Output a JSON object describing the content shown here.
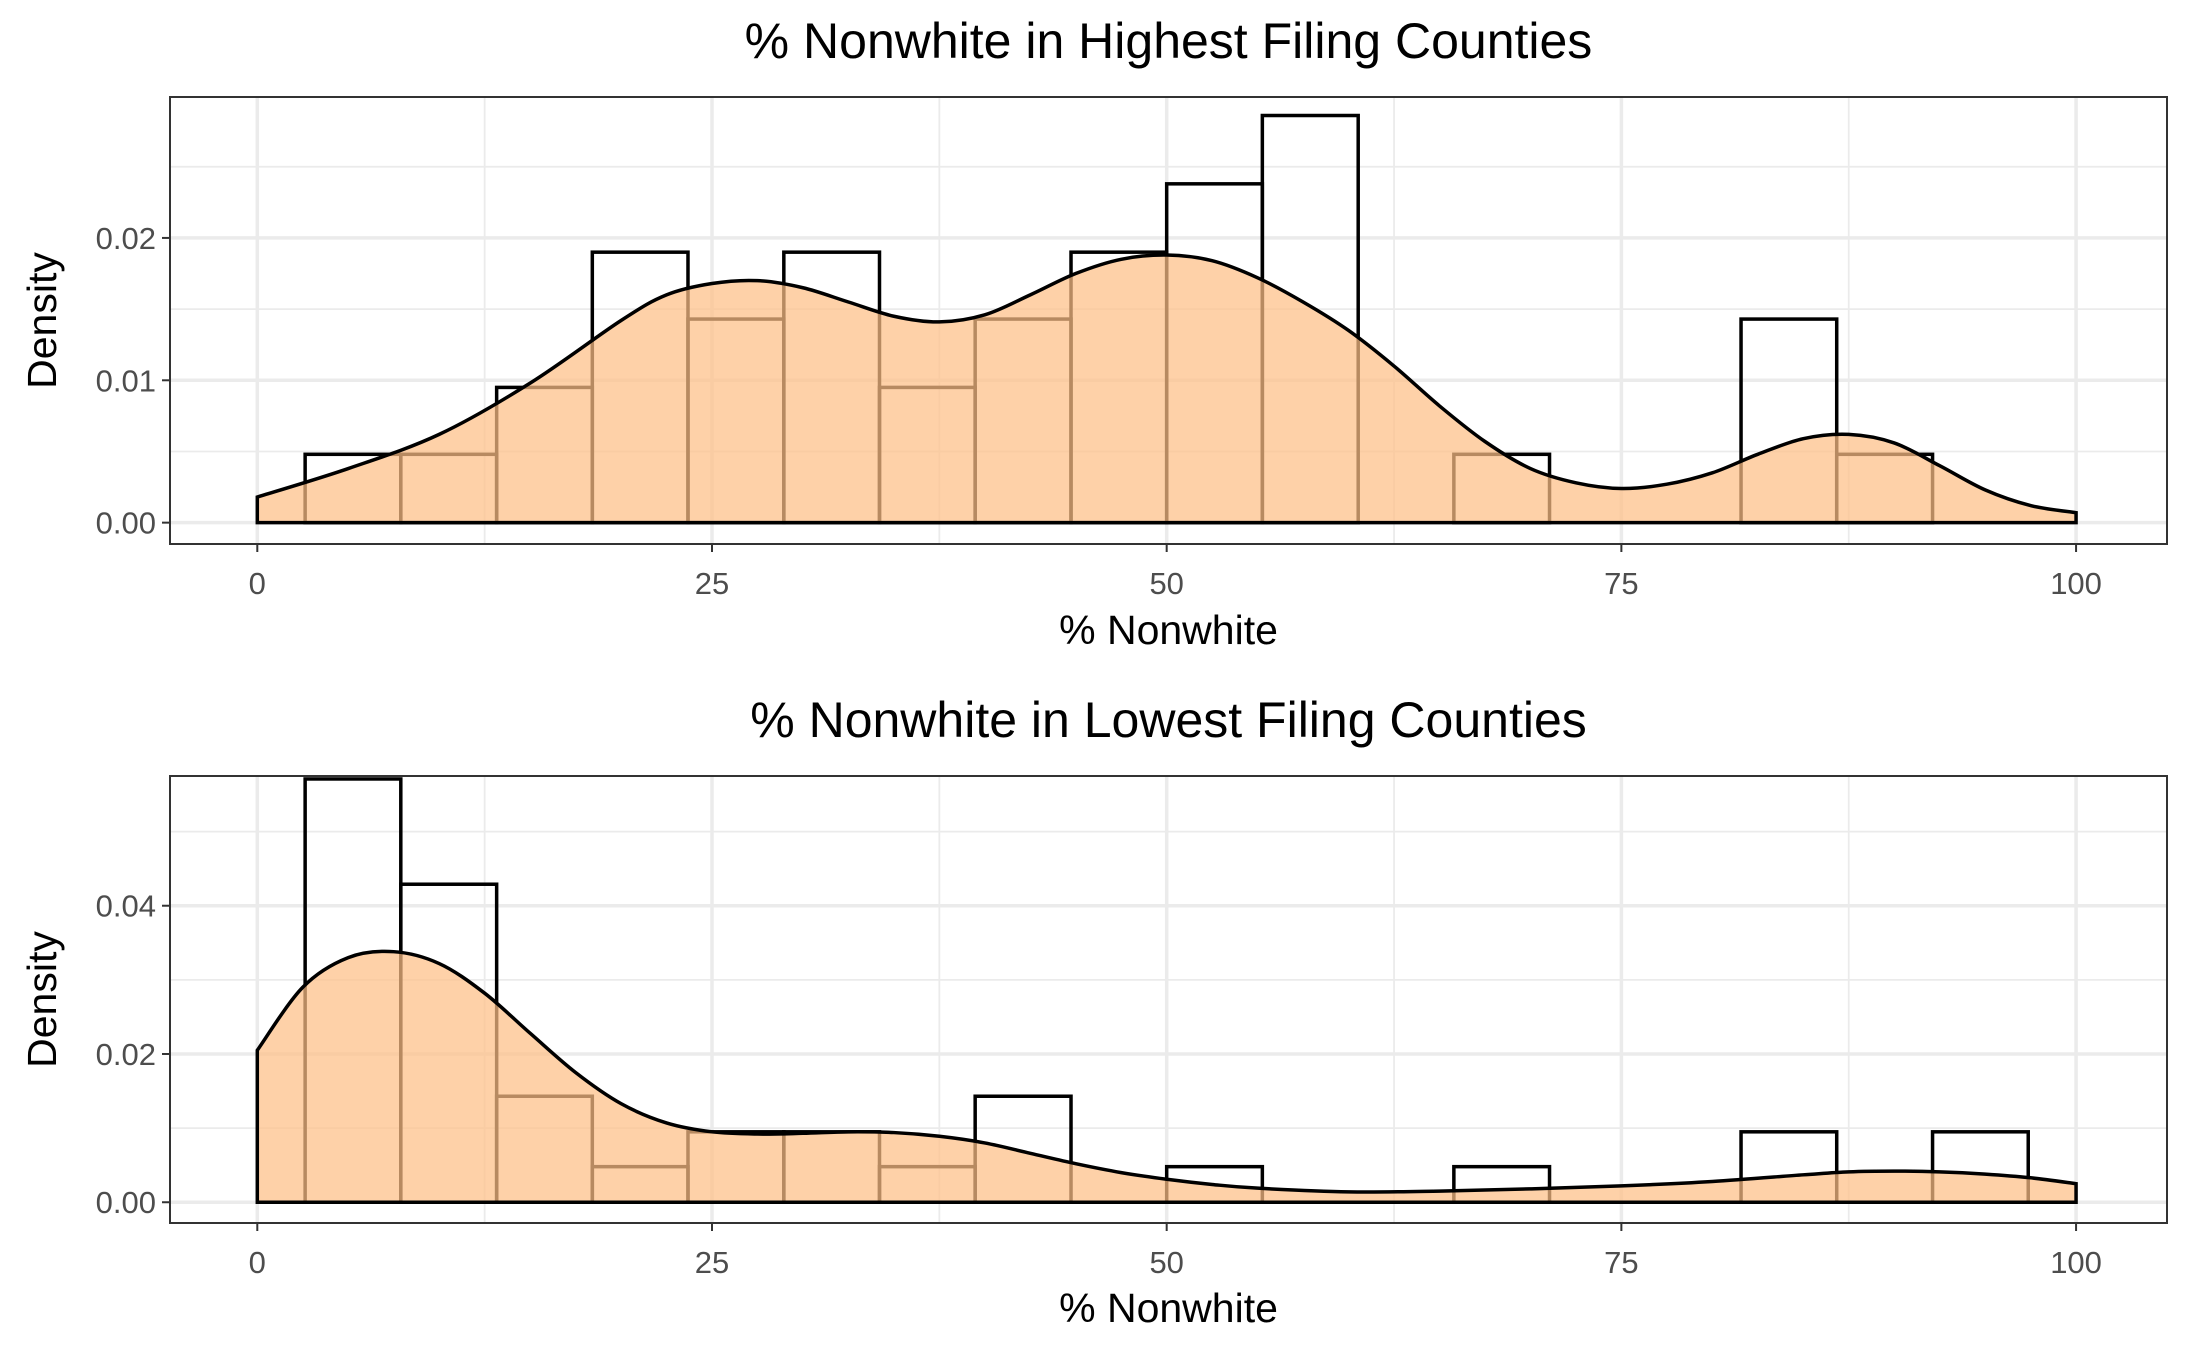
{
  "chart_data": [
    {
      "type": "histogram-density",
      "title": "% Nonwhite in Highest Filing Counties",
      "xlabel": "% Nonwhite",
      "ylabel": "Density",
      "xlim": [
        -4.8,
        105
      ],
      "ylim": [
        -0.0015,
        0.0299
      ],
      "x_ticks": [
        0,
        25,
        50,
        75,
        100
      ],
      "x_tick_labels": [
        "0",
        "25",
        "50",
        "75",
        "100"
      ],
      "y_ticks": [
        0,
        0.01,
        0.02
      ],
      "y_tick_labels": [
        "0.00",
        "0.01",
        "0.02"
      ],
      "grid": true,
      "fill_color": "#fdbf86",
      "bin_width": 5.26,
      "histogram": {
        "bin_start": [
          2.63,
          7.89,
          13.16,
          18.42,
          23.68,
          28.95,
          34.21,
          39.47,
          44.74,
          50.0,
          55.26,
          60.53,
          65.79,
          71.05,
          76.32,
          81.58,
          86.84,
          92.11
        ],
        "bin_end": [
          7.89,
          13.16,
          18.42,
          23.68,
          28.95,
          34.21,
          39.47,
          44.74,
          50.0,
          55.26,
          60.53,
          65.79,
          71.05,
          76.32,
          81.58,
          86.84,
          92.11,
          97.37
        ],
        "density": [
          0.0048,
          0.0048,
          0.0095,
          0.019,
          0.0143,
          0.019,
          0.0095,
          0.0143,
          0.019,
          0.0238,
          0.0286,
          0.0,
          0.0048,
          0.0,
          0.0,
          0.0143,
          0.0048,
          0.0
        ]
      },
      "density_curve": {
        "x": [
          0,
          5,
          10,
          15,
          20,
          22.5,
          25,
          27.5,
          30,
          32.5,
          35,
          37.5,
          40,
          42.5,
          45,
          47.5,
          50,
          52.5,
          55,
          57.5,
          60,
          62.5,
          65,
          67.5,
          70,
          72.5,
          75,
          77.5,
          80,
          82.5,
          85,
          87.5,
          90,
          92.5,
          95,
          97.5,
          100
        ],
        "y": [
          0.0018,
          0.0038,
          0.0062,
          0.0098,
          0.0142,
          0.016,
          0.0168,
          0.017,
          0.0165,
          0.0155,
          0.0145,
          0.0141,
          0.0146,
          0.016,
          0.0175,
          0.0185,
          0.0188,
          0.0184,
          0.0172,
          0.0155,
          0.0135,
          0.011,
          0.0082,
          0.0057,
          0.0038,
          0.0028,
          0.0024,
          0.0027,
          0.0035,
          0.0048,
          0.0059,
          0.0062,
          0.0056,
          0.004,
          0.0023,
          0.0012,
          0.0007
        ]
      }
    },
    {
      "type": "histogram-density",
      "title": "% Nonwhite in Lowest Filing Counties",
      "xlabel": "% Nonwhite",
      "ylabel": "Density",
      "xlim": [
        -4.8,
        105
      ],
      "ylim": [
        -0.0028,
        0.0575
      ],
      "x_ticks": [
        0,
        25,
        50,
        75,
        100
      ],
      "x_tick_labels": [
        "0",
        "25",
        "50",
        "75",
        "100"
      ],
      "y_ticks": [
        0,
        0.02,
        0.04
      ],
      "y_tick_labels": [
        "0.00",
        "0.02",
        "0.04"
      ],
      "grid": true,
      "fill_color": "#fdbf86",
      "bin_width": 5.26,
      "histogram": {
        "bin_start": [
          2.63,
          7.89,
          13.16,
          18.42,
          23.68,
          28.95,
          34.21,
          39.47,
          44.74,
          50.0,
          55.26,
          60.53,
          65.79,
          71.05,
          76.32,
          81.58,
          86.84,
          92.11
        ],
        "bin_end": [
          7.89,
          13.16,
          18.42,
          23.68,
          28.95,
          34.21,
          39.47,
          44.74,
          50.0,
          55.26,
          60.53,
          65.79,
          71.05,
          76.32,
          81.58,
          86.84,
          92.11,
          97.37
        ],
        "density": [
          0.0571,
          0.0429,
          0.0143,
          0.0048,
          0.0095,
          0.0095,
          0.0048,
          0.0143,
          0.0,
          0.0048,
          0.0,
          0.0,
          0.0048,
          0.0,
          0.0,
          0.0095,
          0.0,
          0.0095
        ]
      },
      "density_curve": {
        "x": [
          0,
          2.5,
          5,
          7.5,
          10,
          12.5,
          15,
          17.5,
          20,
          22.5,
          25,
          27.5,
          30,
          32.5,
          35,
          37.5,
          40,
          42.5,
          45,
          47.5,
          50,
          52.5,
          55,
          60,
          65,
          70,
          75,
          80,
          85,
          87.5,
          90,
          92.5,
          95,
          97.5,
          100
        ],
        "y": [
          0.0205,
          0.029,
          0.033,
          0.0338,
          0.0322,
          0.0282,
          0.0228,
          0.0175,
          0.0133,
          0.0107,
          0.0095,
          0.0092,
          0.0093,
          0.0095,
          0.0094,
          0.0089,
          0.008,
          0.0066,
          0.0052,
          0.004,
          0.0031,
          0.0024,
          0.0019,
          0.0014,
          0.0015,
          0.0018,
          0.0022,
          0.0028,
          0.0037,
          0.0041,
          0.0042,
          0.0041,
          0.0038,
          0.0033,
          0.0025
        ]
      }
    }
  ]
}
